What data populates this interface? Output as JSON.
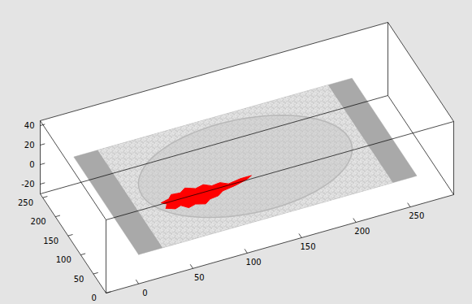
{
  "chart_data": {
    "type": "slice3d",
    "xlim": [
      -30,
      290
    ],
    "ylim": [
      0,
      260
    ],
    "zlim": [
      -30,
      45
    ],
    "xticks": [
      0,
      50,
      100,
      150,
      200,
      250
    ],
    "yticks": [
      0,
      50,
      100,
      150,
      200,
      250
    ],
    "zticks": [
      -20,
      0,
      20,
      40
    ],
    "slice": {
      "z": 0,
      "x": [
        0,
        256
      ],
      "y": [
        0,
        256
      ],
      "image_x": [
        22,
        234
      ],
      "brain_center": [
        128,
        128
      ],
      "brain_radii": [
        95,
        110
      ]
    },
    "region": {
      "color": "#ff0000",
      "z": 0,
      "x": [
        45,
        52,
        58,
        63,
        70,
        78,
        84,
        92,
        98,
        110,
        122,
        128,
        118,
        106,
        100,
        92,
        86,
        78,
        70,
        64,
        56,
        52,
        44,
        48
      ],
      "y": [
        85,
        78,
        82,
        72,
        76,
        70,
        78,
        80,
        88,
        92,
        98,
        104,
        104,
        100,
        108,
        106,
        114,
        110,
        118,
        110,
        112,
        104,
        100,
        94
      ]
    }
  }
}
